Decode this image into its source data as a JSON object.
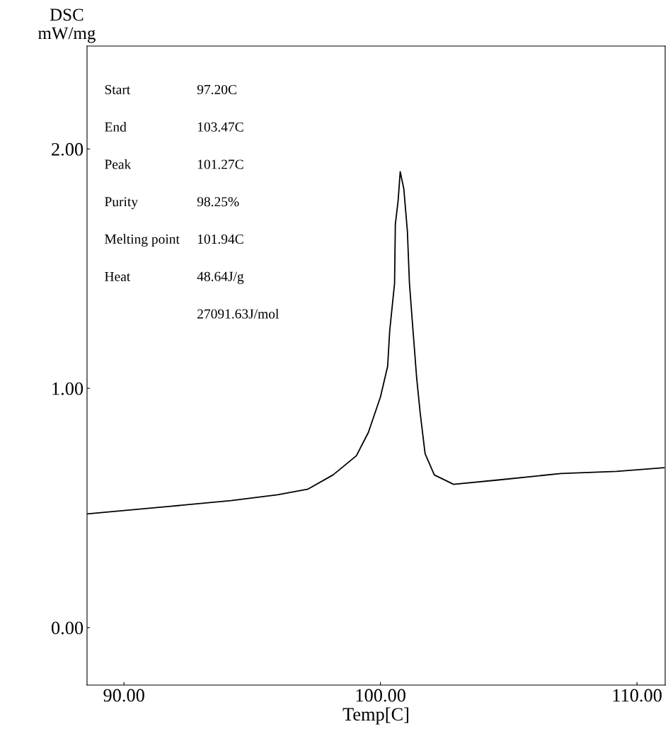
{
  "chart_data": {
    "type": "line",
    "xlabel": "Temp[C]",
    "ylabel": "DSC\nmW/mg",
    "x": [
      88.56,
      91.82,
      94.17,
      95.99,
      97.18,
      98.15,
      99.06,
      99.53,
      100.0,
      100.28,
      100.36,
      100.55,
      100.58,
      100.69,
      100.77,
      100.91,
      101.05,
      101.13,
      101.27,
      101.41,
      101.55,
      101.74,
      102.1,
      102.85,
      104.59,
      107.04,
      109.2,
      111.05
    ],
    "series": [
      {
        "color": "#000000",
        "values": [
          0.475,
          0.507,
          0.531,
          0.555,
          0.579,
          0.638,
          0.718,
          0.816,
          0.964,
          1.092,
          1.24,
          1.439,
          1.685,
          1.786,
          1.905,
          1.834,
          1.656,
          1.439,
          1.24,
          1.045,
          0.896,
          0.727,
          0.638,
          0.599,
          0.617,
          0.644,
          0.653,
          0.668
        ]
      }
    ],
    "xlim": [
      88.56,
      111.1
    ],
    "ylim": [
      -0.24,
      2.43
    ],
    "xticks": [
      {
        "value": 90,
        "label": "90.00"
      },
      {
        "value": 100,
        "label": "100.00"
      },
      {
        "value": 110,
        "label": "110.00"
      }
    ],
    "yticks": [
      {
        "value": 0,
        "label": "0.00"
      },
      {
        "value": 1,
        "label": "1.00"
      },
      {
        "value": 2,
        "label": "2.00"
      }
    ],
    "grid": false,
    "legend": false,
    "marker": "none",
    "line_style": "solid",
    "annotations": [
      "Start",
      "97.20C",
      "End",
      "103.47C",
      "Peak",
      "101.27C",
      "Purity",
      "98.25%",
      "Melting point",
      "101.94C",
      "Heat",
      "48.64J/g",
      "27091.63J/mol"
    ]
  }
}
